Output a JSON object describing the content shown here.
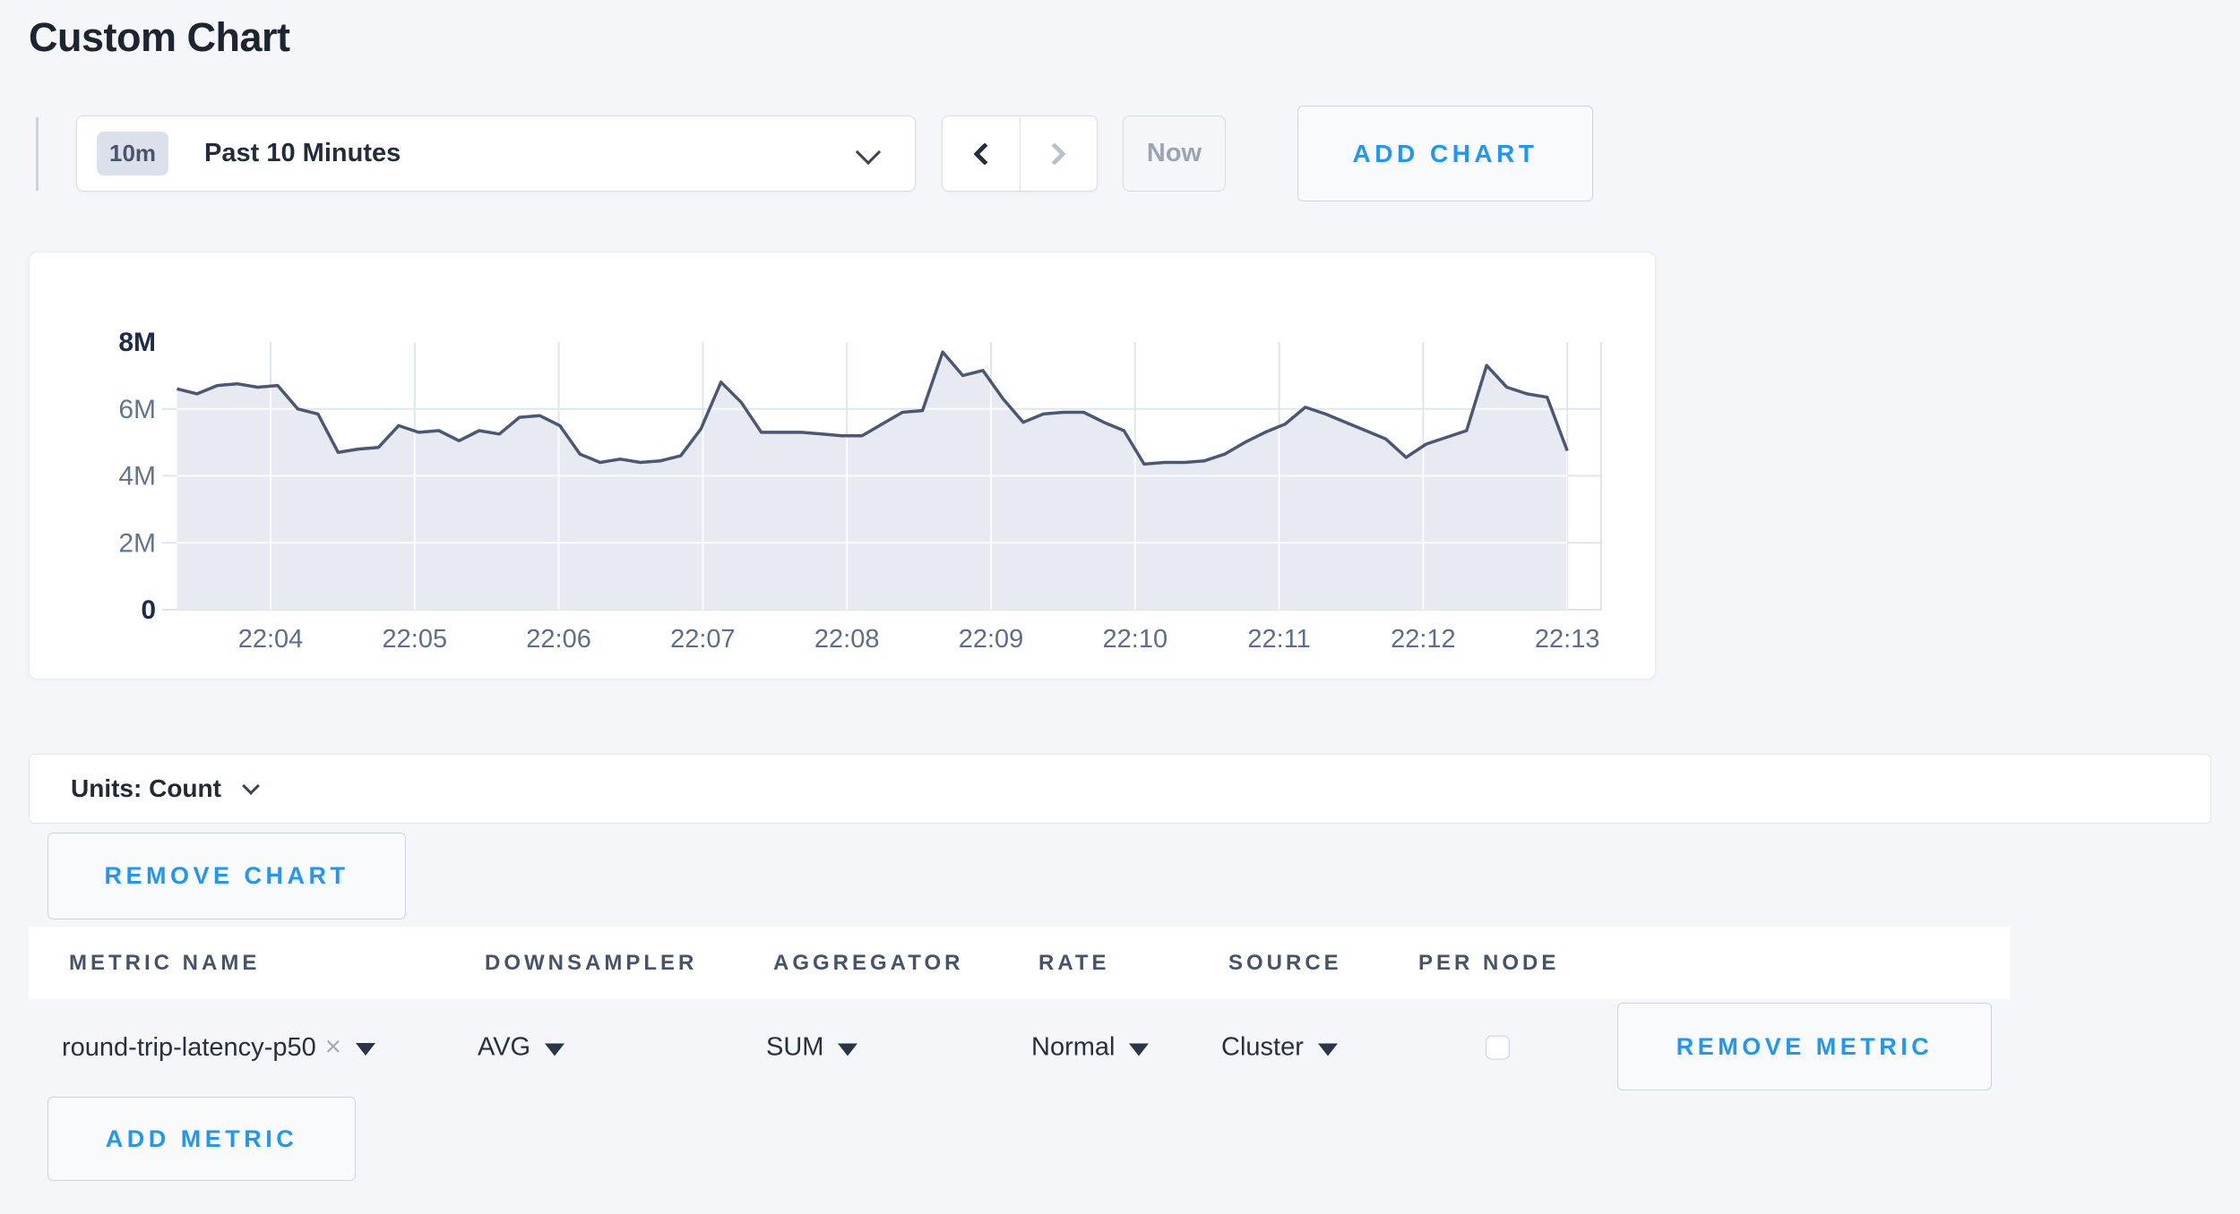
{
  "page_title": "Custom Chart",
  "toolbar": {
    "time_badge": "10m",
    "time_label": "Past 10 Minutes",
    "back_icon": "chevron-left",
    "forward_icon": "chevron-right",
    "now_label": "Now",
    "add_chart_label": "ADD CHART"
  },
  "chart_data": {
    "type": "area",
    "title": "",
    "xlabel": "",
    "ylabel": "",
    "grid": true,
    "legend_position": "none",
    "ylim": [
      0,
      8000000
    ],
    "value_multiplier": 1000000,
    "y_ticks": [
      {
        "label": "8M",
        "value_millions": 8,
        "emphasis": true
      },
      {
        "label": "6M",
        "value_millions": 6,
        "emphasis": false
      },
      {
        "label": "4M",
        "value_millions": 4,
        "emphasis": false
      },
      {
        "label": "2M",
        "value_millions": 2,
        "emphasis": false
      },
      {
        "label": "0",
        "value_millions": 0,
        "emphasis": true
      }
    ],
    "x_tick_labels": [
      "22:04",
      "22:05",
      "22:06",
      "22:07",
      "22:08",
      "22:09",
      "22:10",
      "22:11",
      "22:12",
      "22:13"
    ],
    "x_range_minutes_rel_first_tick": [
      -0.65,
      9.0
    ],
    "series": [
      {
        "name": "round-trip-latency-p50",
        "values_millions": [
          6.6,
          6.45,
          6.7,
          6.75,
          6.65,
          6.7,
          6.0,
          5.85,
          4.7,
          4.8,
          4.85,
          5.5,
          5.3,
          5.35,
          5.05,
          5.35,
          5.25,
          5.75,
          5.8,
          5.5,
          4.65,
          4.4,
          4.5,
          4.4,
          4.45,
          4.6,
          5.4,
          6.8,
          6.2,
          5.3,
          5.3,
          5.3,
          5.25,
          5.2,
          5.2,
          5.55,
          5.9,
          5.95,
          7.7,
          7.0,
          7.15,
          6.3,
          5.6,
          5.85,
          5.9,
          5.9,
          5.6,
          5.35,
          4.35,
          4.4,
          4.4,
          4.45,
          4.65,
          5.0,
          5.3,
          5.55,
          6.05,
          5.85,
          5.6,
          5.35,
          5.1,
          4.55,
          4.95,
          5.15,
          5.35,
          7.3,
          6.65,
          6.45,
          6.35,
          4.75
        ]
      }
    ],
    "colors": {
      "line": "#4a5873",
      "fill": "#e8eaf1",
      "grid": "#dfe5ee"
    }
  },
  "units": {
    "label": "Units: Count"
  },
  "chart_controls": {
    "remove_chart_label": "REMOVE CHART"
  },
  "metrics_table": {
    "columns": [
      "METRIC NAME",
      "DOWNSAMPLER",
      "AGGREGATOR",
      "RATE",
      "SOURCE",
      "PER NODE"
    ],
    "rows": [
      {
        "metric_name": "round-trip-latency-p50",
        "downsampler": "AVG",
        "aggregator": "SUM",
        "rate": "Normal",
        "source": "Cluster",
        "per_node_checked": false,
        "remove_label": "REMOVE METRIC"
      }
    ],
    "add_metric_label": "ADD METRIC"
  },
  "colors": {
    "accent_blue": "#2196f3",
    "page_background": "#f5f6f9"
  }
}
